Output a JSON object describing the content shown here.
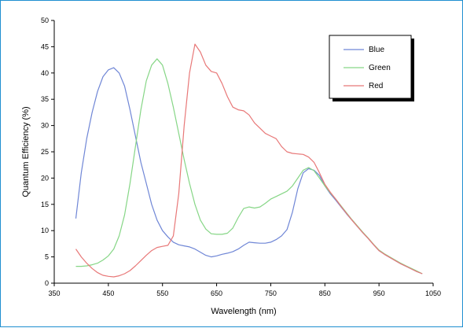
{
  "chart_data": {
    "type": "line",
    "title": "",
    "xlabel": "Wavelength (nm)",
    "ylabel": "Quantum Efficiency (%)",
    "xlim": [
      350,
      1050
    ],
    "ylim": [
      0,
      50
    ],
    "x_ticks": [
      350,
      450,
      550,
      650,
      750,
      850,
      950,
      1050
    ],
    "y_ticks": [
      0,
      5,
      10,
      15,
      20,
      25,
      30,
      35,
      40,
      45,
      50
    ],
    "grid": false,
    "legend_position": "top-right",
    "series": [
      {
        "name": "Blue",
        "color": "#6f86d6",
        "x": [
          390,
          400,
          410,
          420,
          430,
          440,
          450,
          460,
          470,
          480,
          490,
          500,
          510,
          520,
          530,
          540,
          550,
          560,
          570,
          580,
          590,
          600,
          610,
          620,
          630,
          640,
          650,
          660,
          670,
          680,
          690,
          700,
          710,
          720,
          730,
          740,
          750,
          760,
          770,
          780,
          790,
          800,
          810,
          820,
          830,
          840,
          850,
          860,
          870,
          880,
          890,
          900,
          910,
          920,
          930,
          940,
          950,
          960,
          970,
          980,
          990,
          1000,
          1010,
          1020,
          1030
        ],
        "values": [
          12.3,
          21,
          27.5,
          32.5,
          36.5,
          39.3,
          40.6,
          41,
          40,
          37.5,
          33,
          28,
          23,
          19,
          15,
          12,
          10,
          8.8,
          7.8,
          7.3,
          7.1,
          6.9,
          6.5,
          5.9,
          5.3,
          5,
          5.2,
          5.5,
          5.7,
          6,
          6.5,
          7.2,
          7.8,
          7.7,
          7.6,
          7.6,
          7.8,
          8.3,
          9,
          10.2,
          13.5,
          18,
          21,
          21.8,
          21.5,
          20.5,
          18.5,
          17,
          15.8,
          14.5,
          13.2,
          12,
          10.8,
          9.6,
          8.5,
          7.3,
          6.2,
          5.5,
          4.9,
          4.3,
          3.7,
          3.2,
          2.7,
          2.2,
          1.8
        ]
      },
      {
        "name": "Green",
        "color": "#86d686",
        "x": [
          390,
          400,
          410,
          420,
          430,
          440,
          450,
          460,
          470,
          480,
          490,
          500,
          510,
          520,
          530,
          540,
          550,
          560,
          570,
          580,
          590,
          600,
          610,
          620,
          630,
          640,
          650,
          660,
          670,
          680,
          690,
          700,
          710,
          720,
          730,
          740,
          750,
          760,
          770,
          780,
          790,
          800,
          810,
          820,
          830,
          840,
          850,
          860,
          870,
          880,
          890,
          900,
          910,
          920,
          930,
          940,
          950,
          960,
          970,
          980,
          990,
          1000,
          1010,
          1020,
          1030
        ],
        "values": [
          3.2,
          3.2,
          3.3,
          3.5,
          3.8,
          4.4,
          5.2,
          6.5,
          9,
          13,
          19,
          26,
          33,
          38.5,
          41.5,
          42.7,
          41.5,
          38,
          33.5,
          28.5,
          23.5,
          19,
          15,
          12,
          10.3,
          9.4,
          9.3,
          9.3,
          9.5,
          10.5,
          12.5,
          14.2,
          14.5,
          14.3,
          14.5,
          15.2,
          16,
          16.5,
          17,
          17.5,
          18.5,
          20,
          21.5,
          22,
          21.4,
          20,
          18.5,
          17.2,
          16,
          14.7,
          13.4,
          12.1,
          10.9,
          9.7,
          8.6,
          7.4,
          6.3,
          5.6,
          5,
          4.4,
          3.8,
          3.3,
          2.8,
          2.3,
          1.8
        ]
      },
      {
        "name": "Red",
        "color": "#e87878",
        "x": [
          390,
          400,
          410,
          420,
          430,
          440,
          450,
          460,
          470,
          480,
          490,
          500,
          510,
          520,
          530,
          540,
          550,
          560,
          570,
          580,
          590,
          600,
          610,
          620,
          630,
          640,
          650,
          660,
          670,
          680,
          690,
          700,
          710,
          720,
          730,
          740,
          750,
          760,
          770,
          780,
          790,
          800,
          810,
          820,
          830,
          840,
          850,
          860,
          870,
          880,
          890,
          900,
          910,
          920,
          930,
          940,
          950,
          960,
          970,
          980,
          990,
          1000,
          1010,
          1020,
          1030
        ],
        "values": [
          6.5,
          5,
          3.8,
          2.8,
          2,
          1.5,
          1.3,
          1.2,
          1.4,
          1.8,
          2.4,
          3.3,
          4.3,
          5.3,
          6.2,
          6.8,
          7,
          7.2,
          9,
          17,
          30,
          40,
          45.5,
          44,
          41.5,
          40.3,
          40,
          38,
          35.5,
          33.5,
          33,
          32.8,
          32,
          30.5,
          29.5,
          28.5,
          28,
          27.5,
          26,
          25,
          24.7,
          24.6,
          24.5,
          24,
          23,
          21,
          18.8,
          17.3,
          16,
          14.6,
          13.3,
          12,
          10.8,
          9.6,
          8.5,
          7.3,
          6.2,
          5.5,
          4.9,
          4.3,
          3.7,
          3.2,
          2.7,
          2.2,
          1.8
        ]
      }
    ]
  }
}
